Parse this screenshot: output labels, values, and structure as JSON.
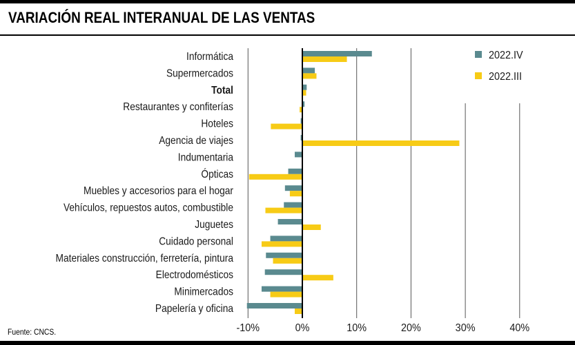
{
  "title": "VARIACIÓN REAL INTERANUAL DE LAS VENTAS",
  "source": "Fuente: CNCS.",
  "colors": {
    "s1": "#5a8a8f",
    "s2": "#f7cb16",
    "grid": "#555555",
    "zero": "#000000"
  },
  "chart_data": {
    "type": "bar",
    "orientation": "horizontal",
    "title": "VARIACIÓN REAL INTERANUAL DE LAS VENTAS",
    "xlim": [
      -10,
      40
    ],
    "ticks": [
      -10,
      0,
      10,
      20,
      30,
      40
    ],
    "tick_labels": [
      "-10%",
      "0%",
      "10%",
      "20%",
      "30%",
      "40%"
    ],
    "legend_position": "top-right",
    "grid": true,
    "categories": [
      "Informática",
      "Supermercados",
      "Total",
      "Restaurantes y confiterías",
      "Hoteles",
      "Agencia de viajes",
      "Indumentaria",
      "Ópticas",
      "Muebles y accesorios para el hogar",
      "Vehículos, repuestos autos, combustible",
      "Juguetes",
      "Cuidado personal",
      "Materiales construcción, ferretería, pintura",
      "Electrodomésticos",
      "Minimercados",
      "Papelería y oficina"
    ],
    "bold_category": "Total",
    "series": [
      {
        "name": "2022.IV",
        "values": [
          12.8,
          2.3,
          0.8,
          0.4,
          -0.3,
          -0.3,
          -1.4,
          -2.6,
          -3.2,
          -3.4,
          -4.5,
          -5.9,
          -6.7,
          -6.9,
          -7.5,
          -10.2
        ]
      },
      {
        "name": "2022.III",
        "values": [
          8.2,
          2.6,
          0.7,
          -0.5,
          -5.8,
          28.9,
          0.0,
          -9.8,
          -2.3,
          -6.8,
          3.4,
          -7.5,
          -5.4,
          5.7,
          -5.9,
          -1.4
        ]
      }
    ]
  }
}
